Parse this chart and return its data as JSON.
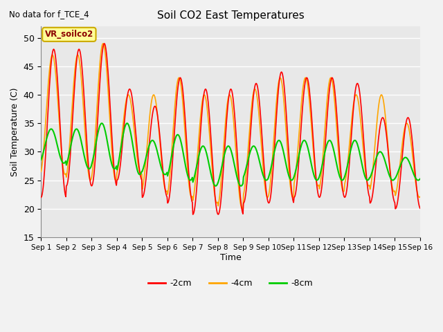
{
  "title": "Soil CO2 East Temperatures",
  "no_data_text": "No data for f_TCE_4",
  "annotation_text": "VR_soilco2",
  "ylabel": "Soil Temperature (C)",
  "xlabel": "Time",
  "ylim": [
    15,
    52
  ],
  "yticks": [
    15,
    20,
    25,
    30,
    35,
    40,
    45,
    50
  ],
  "x_labels": [
    "Sep 1",
    "Sep 2",
    "Sep 3",
    "Sep 4",
    "Sep 5",
    "Sep 6",
    "Sep 7",
    "Sep 8",
    "Sep 9",
    "Sep 10",
    "Sep 11",
    "Sep 12",
    "Sep 13",
    "Sep 14",
    "Sep 15",
    "Sep 16"
  ],
  "colors": {
    "2cm": "#FF0000",
    "4cm": "#FFA500",
    "8cm": "#00CC00"
  },
  "legend_labels": [
    "-2cm",
    "-4cm",
    "-8cm"
  ],
  "fig_bg_color": "#F2F2F2",
  "plot_bg_color": "#E8E8E8",
  "grid_color": "#FFFFFF",
  "annotation_bg": "#FFFF99",
  "annotation_border": "#CCAA00",
  "peaks_2cm": [
    48,
    48,
    49,
    41,
    38,
    43,
    41,
    41,
    42,
    44,
    43,
    43,
    42,
    36,
    36
  ],
  "troughs_2cm": [
    22,
    24,
    24,
    25,
    22,
    21,
    19,
    19,
    21,
    21,
    22,
    22,
    22,
    21,
    20
  ],
  "peaks_4cm": [
    47,
    47,
    49,
    40,
    40,
    43,
    40,
    40,
    41,
    43,
    43,
    43,
    40,
    40,
    35
  ],
  "troughs_4cm": [
    26,
    25,
    25,
    26,
    23,
    22,
    21,
    20,
    22,
    22,
    24,
    23,
    24,
    23,
    22
  ],
  "peaks_8cm": [
    34,
    34,
    35,
    35,
    32,
    33,
    31,
    31,
    31,
    32,
    32,
    32,
    32,
    30,
    29
  ],
  "troughs_8cm": [
    28,
    27,
    27,
    26,
    26,
    25,
    24,
    24,
    25,
    25,
    25,
    25,
    25,
    25,
    25
  ],
  "pts_per_day": 48,
  "n_days": 15
}
